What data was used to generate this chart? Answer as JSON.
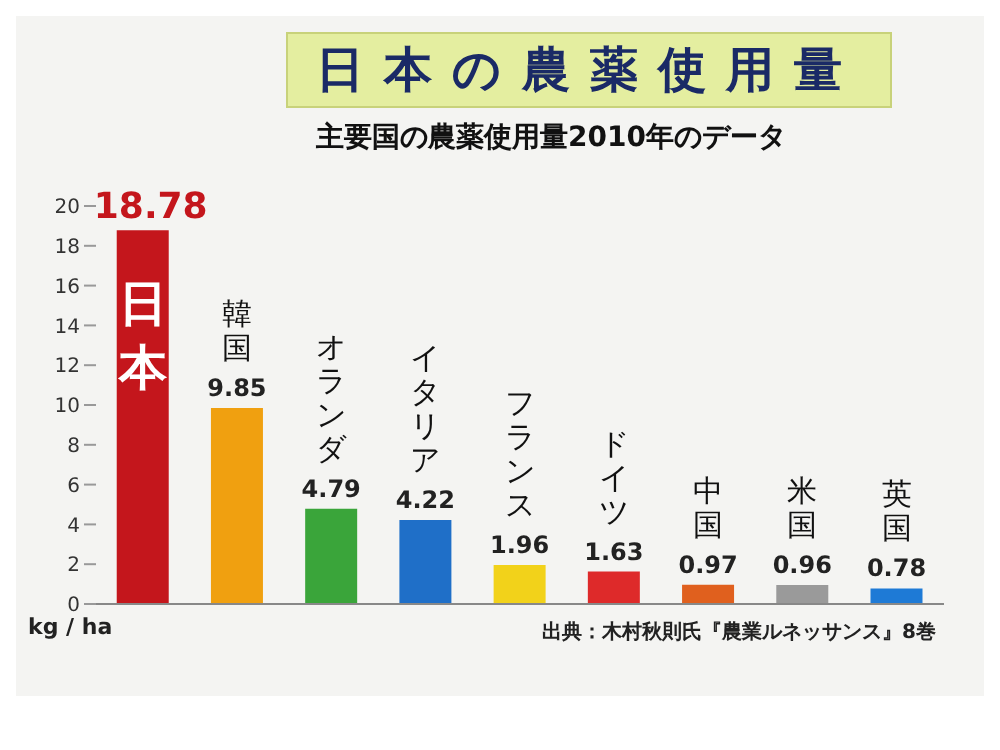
{
  "chart_data": {
    "type": "bar",
    "title": "日本の農薬使用量",
    "subtitle": "主要国の農薬使用量2010年のデータ",
    "ylabel": "kg / ha",
    "categories": [
      "日本",
      "韓国",
      "オランダ",
      "イタリア",
      "フランス",
      "ドイツ",
      "中国",
      "米国",
      "英国"
    ],
    "values": [
      18.78,
      9.85,
      4.79,
      4.22,
      1.96,
      1.63,
      0.97,
      0.96,
      0.78
    ],
    "colors": [
      "#c4161c",
      "#f0a010",
      "#3aa53a",
      "#1f6fc8",
      "#f2d21a",
      "#de2a2a",
      "#e0601e",
      "#9a9a9a",
      "#1e7ad6"
    ],
    "data_labels": true,
    "ylim": [
      0,
      20
    ],
    "yticks": [
      0,
      2,
      4,
      6,
      8,
      10,
      12,
      14,
      16,
      18,
      20
    ],
    "grid": false,
    "legend": false,
    "annotations": [
      "出典：木村秋則氏『農業ルネッサンス』8巻"
    ]
  }
}
